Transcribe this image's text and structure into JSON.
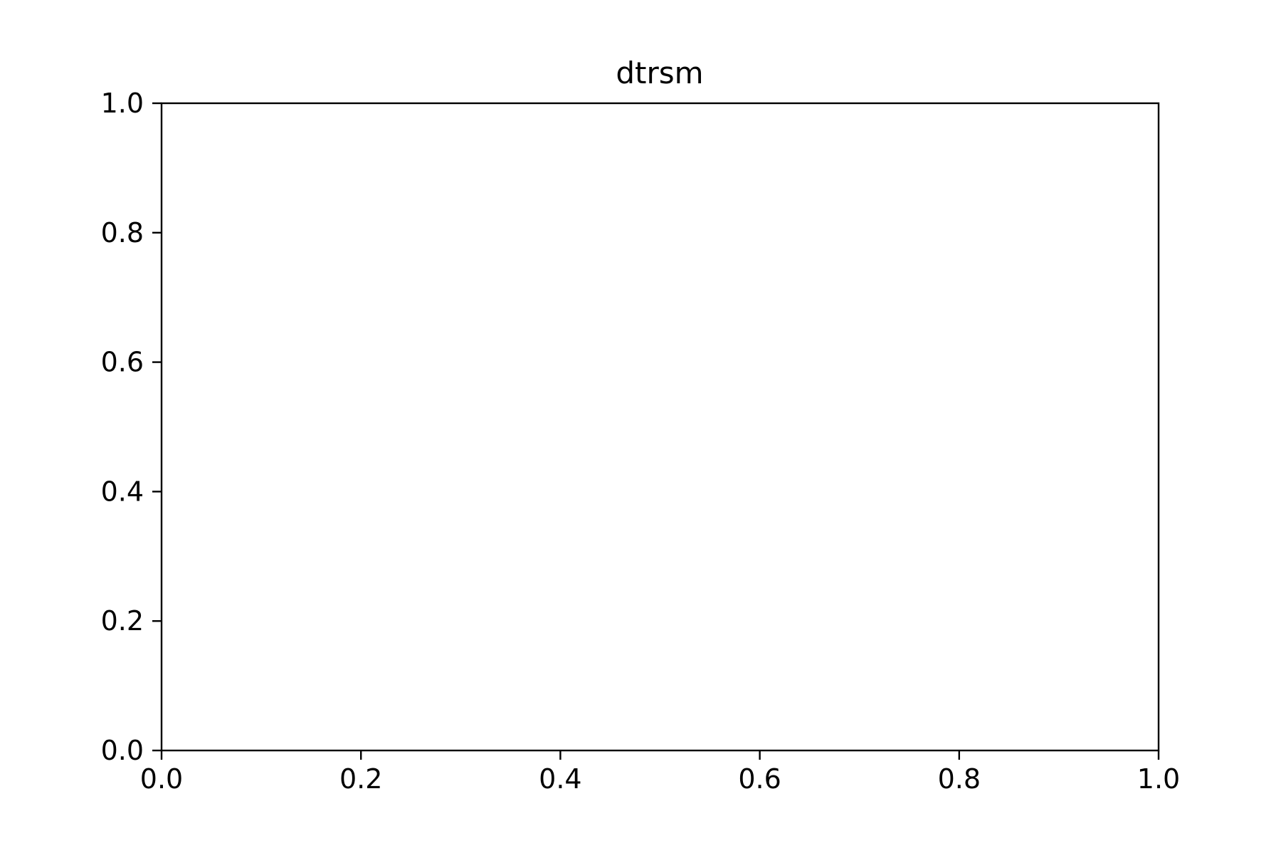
{
  "chart_data": {
    "type": "line",
    "title": "dtrsm",
    "xlabel": "",
    "ylabel": "",
    "xlim": [
      0.0,
      1.0
    ],
    "ylim": [
      0.0,
      1.0
    ],
    "x_ticks": [
      "0.0",
      "0.2",
      "0.4",
      "0.6",
      "0.8",
      "1.0"
    ],
    "y_ticks": [
      "0.0",
      "0.2",
      "0.4",
      "0.6",
      "0.8",
      "1.0"
    ],
    "series": [],
    "grid": false,
    "legend": "none"
  }
}
